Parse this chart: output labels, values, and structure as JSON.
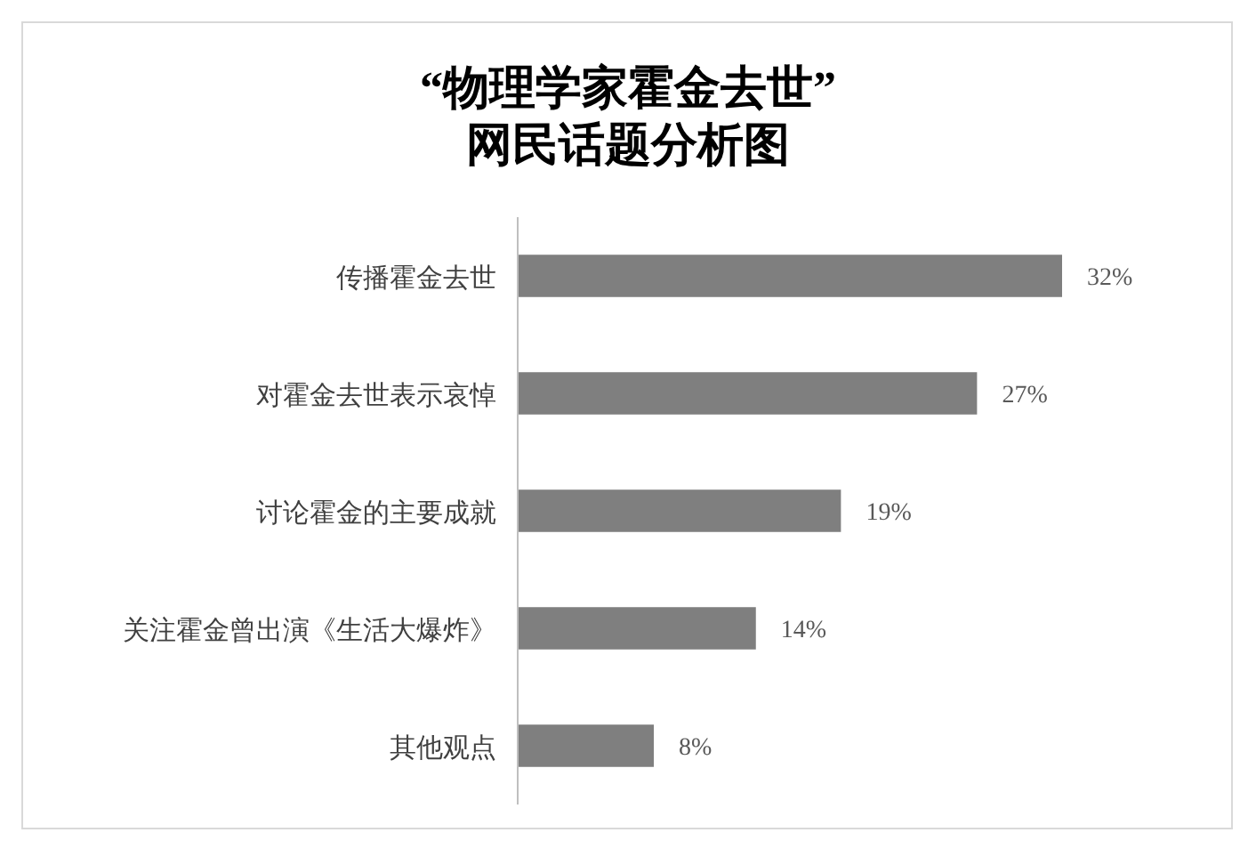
{
  "chart_data": {
    "type": "bar",
    "orientation": "horizontal",
    "title": "“物理学家霍金去世”\n网民话题分析图",
    "categories": [
      "传播霍金去世",
      "对霍金去世表示哀悼",
      "讨论霍金的主要成就",
      "关注霍金曾出演《生活大爆炸》",
      "其他观点"
    ],
    "values": [
      32,
      27,
      19,
      14,
      8
    ],
    "color": "#7f7f7f",
    "data_labels": true,
    "value_labels": [
      "32%",
      "27%",
      "19%",
      "14%",
      "8%"
    ]
  }
}
